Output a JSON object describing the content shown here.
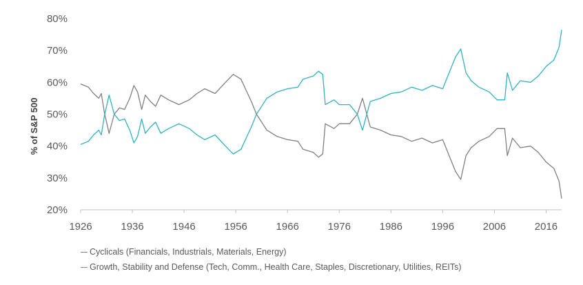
{
  "chart_data": {
    "type": "line",
    "title": "",
    "xlabel": "",
    "ylabel": "% of S&P 500",
    "ylim": [
      20,
      80
    ],
    "xlim": [
      1926,
      2019
    ],
    "x_ticks": [
      "1926",
      "1936",
      "1946",
      "1956",
      "1966",
      "1976",
      "1986",
      "1996",
      "2006",
      "2016"
    ],
    "y_ticks": [
      "20%",
      "30%",
      "40%",
      "50%",
      "60%",
      "70%",
      "80%"
    ],
    "grid": false,
    "legend_position": "bottom",
    "series": [
      {
        "name": "Cyclicals (Financials, Industrials, Materials, Energy)",
        "color": "#7f7f7f",
        "points": [
          [
            1926,
            59.5
          ],
          [
            1927.5,
            58.5
          ],
          [
            1928.5,
            56.5
          ],
          [
            1929.5,
            55
          ],
          [
            1930,
            56.5
          ],
          [
            1930.6,
            50.5
          ],
          [
            1931.5,
            44
          ],
          [
            1932.5,
            50
          ],
          [
            1933.5,
            52
          ],
          [
            1934.5,
            51.5
          ],
          [
            1935.5,
            55
          ],
          [
            1936.3,
            59
          ],
          [
            1937,
            57
          ],
          [
            1937.8,
            51.5
          ],
          [
            1938.5,
            56
          ],
          [
            1939.5,
            54
          ],
          [
            1940.5,
            52.5
          ],
          [
            1941.5,
            56
          ],
          [
            1943,
            54.5
          ],
          [
            1945,
            53
          ],
          [
            1947,
            54.5
          ],
          [
            1948.5,
            56.5
          ],
          [
            1950,
            58
          ],
          [
            1952,
            56.5
          ],
          [
            1954,
            60
          ],
          [
            1955.5,
            62.5
          ],
          [
            1957,
            61
          ],
          [
            1958,
            57.5
          ],
          [
            1959,
            54
          ],
          [
            1960,
            50
          ],
          [
            1962,
            45
          ],
          [
            1964,
            43
          ],
          [
            1966,
            42
          ],
          [
            1968,
            41.5
          ],
          [
            1969,
            39
          ],
          [
            1971,
            38
          ],
          [
            1972,
            36.5
          ],
          [
            1972.8,
            37.5
          ],
          [
            1973.3,
            47
          ],
          [
            1975,
            45.5
          ],
          [
            1976,
            47
          ],
          [
            1978,
            47
          ],
          [
            1979.5,
            50
          ],
          [
            1980.5,
            55
          ],
          [
            1981,
            52
          ],
          [
            1982,
            46
          ],
          [
            1984,
            45
          ],
          [
            1986,
            43.5
          ],
          [
            1988,
            43
          ],
          [
            1990,
            41.5
          ],
          [
            1992,
            42.5
          ],
          [
            1994,
            41
          ],
          [
            1996,
            42
          ],
          [
            1997.5,
            36
          ],
          [
            1998.5,
            32
          ],
          [
            1999.5,
            29.5
          ],
          [
            2000.5,
            37
          ],
          [
            2001.5,
            39.5
          ],
          [
            2003,
            41.5
          ],
          [
            2005,
            43
          ],
          [
            2006.5,
            45.5
          ],
          [
            2008,
            45.5
          ],
          [
            2008.5,
            37
          ],
          [
            2009.5,
            42.5
          ],
          [
            2011,
            39.5
          ],
          [
            2013,
            40
          ],
          [
            2014.5,
            38
          ],
          [
            2016,
            35
          ],
          [
            2017.5,
            33
          ],
          [
            2018.5,
            29
          ],
          [
            2019,
            23.5
          ]
        ]
      },
      {
        "name": "Growth, Stability and Defense (Tech, Comm., Health Care, Staples, Discretionary, Utilities, REITs)",
        "color": "#2eb3c0",
        "points": [
          [
            1926,
            40.5
          ],
          [
            1927.5,
            41.5
          ],
          [
            1928.5,
            43.5
          ],
          [
            1929.5,
            45
          ],
          [
            1930,
            43.5
          ],
          [
            1930.6,
            49.5
          ],
          [
            1931.5,
            56
          ],
          [
            1932.5,
            50
          ],
          [
            1933.5,
            48
          ],
          [
            1934.5,
            48.5
          ],
          [
            1935.5,
            45
          ],
          [
            1936.3,
            41
          ],
          [
            1937,
            43
          ],
          [
            1937.8,
            48.5
          ],
          [
            1938.5,
            44
          ],
          [
            1939.5,
            46
          ],
          [
            1940.5,
            47.5
          ],
          [
            1941.5,
            44
          ],
          [
            1943,
            45.5
          ],
          [
            1945,
            47
          ],
          [
            1947,
            45.5
          ],
          [
            1948.5,
            43.5
          ],
          [
            1950,
            42
          ],
          [
            1952,
            43.5
          ],
          [
            1954,
            40
          ],
          [
            1955.5,
            37.5
          ],
          [
            1957,
            39
          ],
          [
            1958,
            42.5
          ],
          [
            1959,
            46
          ],
          [
            1960,
            50
          ],
          [
            1962,
            55
          ],
          [
            1964,
            57
          ],
          [
            1966,
            58
          ],
          [
            1968,
            58.5
          ],
          [
            1969,
            61
          ],
          [
            1971,
            62
          ],
          [
            1972,
            63.5
          ],
          [
            1972.8,
            62.5
          ],
          [
            1973.3,
            53
          ],
          [
            1975,
            54.5
          ],
          [
            1976,
            53
          ],
          [
            1978,
            53
          ],
          [
            1979.5,
            50
          ],
          [
            1980.5,
            45
          ],
          [
            1981,
            48
          ],
          [
            1982,
            54
          ],
          [
            1984,
            55
          ],
          [
            1986,
            56.5
          ],
          [
            1988,
            57
          ],
          [
            1990,
            58.5
          ],
          [
            1992,
            57.5
          ],
          [
            1994,
            59
          ],
          [
            1996,
            58
          ],
          [
            1997.5,
            64
          ],
          [
            1998.5,
            68
          ],
          [
            1999.5,
            70.5
          ],
          [
            2000.5,
            63
          ],
          [
            2001.5,
            60.5
          ],
          [
            2003,
            58.5
          ],
          [
            2005,
            57
          ],
          [
            2006.5,
            54.5
          ],
          [
            2008,
            54.5
          ],
          [
            2008.5,
            63
          ],
          [
            2009.5,
            57.5
          ],
          [
            2011,
            60.5
          ],
          [
            2013,
            60
          ],
          [
            2014.5,
            62
          ],
          [
            2016,
            65
          ],
          [
            2017.5,
            67
          ],
          [
            2018.5,
            71
          ],
          [
            2019,
            76.5
          ]
        ]
      }
    ]
  }
}
